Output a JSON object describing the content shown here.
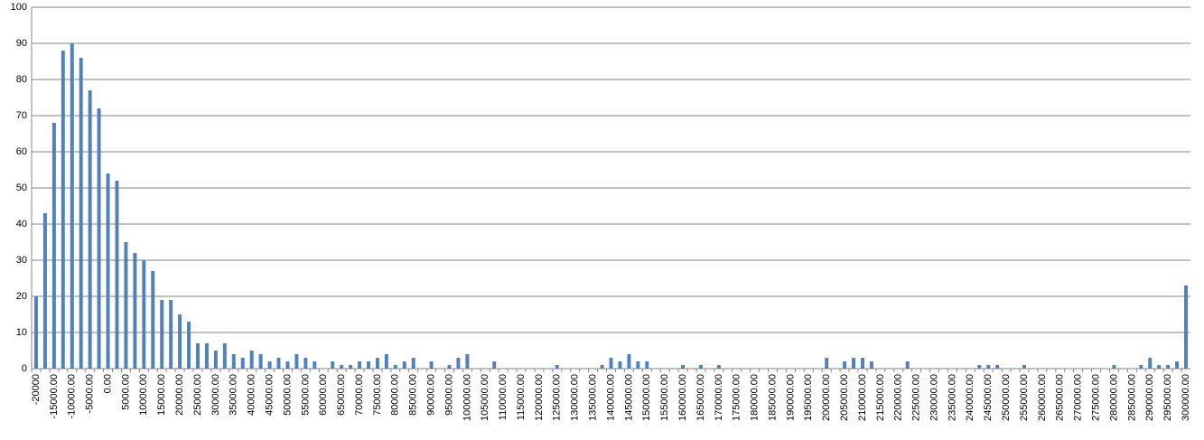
{
  "chart_data": {
    "type": "bar",
    "color": "#4f81bd",
    "grid": true,
    "ylim": [
      0,
      100
    ],
    "yticks": [
      0,
      10,
      20,
      30,
      40,
      50,
      60,
      70,
      80,
      90,
      100
    ],
    "categories": [
      "-20000",
      null,
      "-15000.00",
      null,
      "-10000.00",
      null,
      "-5000.00",
      null,
      "0.00",
      null,
      "5000.00",
      null,
      "10000.00",
      null,
      "15000.00",
      null,
      "20000.00",
      null,
      "25000.00",
      null,
      "30000.00",
      null,
      "35000.00",
      null,
      "40000.00",
      null,
      "45000.00",
      null,
      "50000.00",
      null,
      "55000.00",
      null,
      "60000.00",
      null,
      "65000.00",
      null,
      "70000.00",
      null,
      "75000.00",
      null,
      "80000.00",
      null,
      "85000.00",
      null,
      "90000.00",
      null,
      "95000.00",
      null,
      "100000.00",
      null,
      "105000.00",
      null,
      "110000.00",
      null,
      "115000.00",
      null,
      "120000.00",
      null,
      "125000.00",
      null,
      "130000.00",
      null,
      "135000.00",
      null,
      "140000.00",
      null,
      "145000.00",
      null,
      "150000.00",
      null,
      "155000.00",
      null,
      "160000.00",
      null,
      "165000.00",
      null,
      "170000.00",
      null,
      "175000.00",
      null,
      "180000.00",
      null,
      "185000.00",
      null,
      "190000.00",
      null,
      "195000.00",
      null,
      "200000.00",
      null,
      "205000.00",
      null,
      "210000.00",
      null,
      "215000.00",
      null,
      "220000.00",
      null,
      "225000.00",
      null,
      "230000.00",
      null,
      "235000.00",
      null,
      "240000.00",
      null,
      "245000.00",
      null,
      "250000.00",
      null,
      "255000.00",
      null,
      "260000.00",
      null,
      "265000.00",
      null,
      "270000.00",
      null,
      "275000.00",
      null,
      "280000.00",
      null,
      "285000.00",
      null,
      "290000.00",
      null,
      "295000.00",
      null,
      "300000.00"
    ],
    "values": [
      20,
      43,
      68,
      88,
      90,
      86,
      77,
      72,
      54,
      52,
      35,
      32,
      30,
      27,
      19,
      19,
      15,
      13,
      7,
      7,
      5,
      7,
      4,
      3,
      5,
      4,
      2,
      3,
      2,
      4,
      3,
      2,
      0,
      2,
      1,
      1,
      2,
      2,
      3,
      4,
      1,
      2,
      3,
      0,
      2,
      0,
      1,
      3,
      4,
      0,
      0,
      2,
      0,
      0,
      0,
      0,
      0,
      0,
      1,
      0,
      0,
      0,
      0,
      1,
      3,
      2,
      4,
      2,
      2,
      0,
      0,
      0,
      1,
      0,
      1,
      0,
      1,
      0,
      0,
      0,
      0,
      0,
      0,
      0,
      0,
      0,
      0,
      0,
      3,
      0,
      2,
      3,
      3,
      2,
      0,
      0,
      0,
      2,
      0,
      0,
      0,
      0,
      0,
      0,
      0,
      1,
      1,
      1,
      0,
      0,
      1,
      0,
      0,
      0,
      0,
      0,
      0,
      0,
      0,
      0,
      1,
      0,
      0,
      1,
      3,
      1,
      1,
      2,
      23
    ]
  }
}
